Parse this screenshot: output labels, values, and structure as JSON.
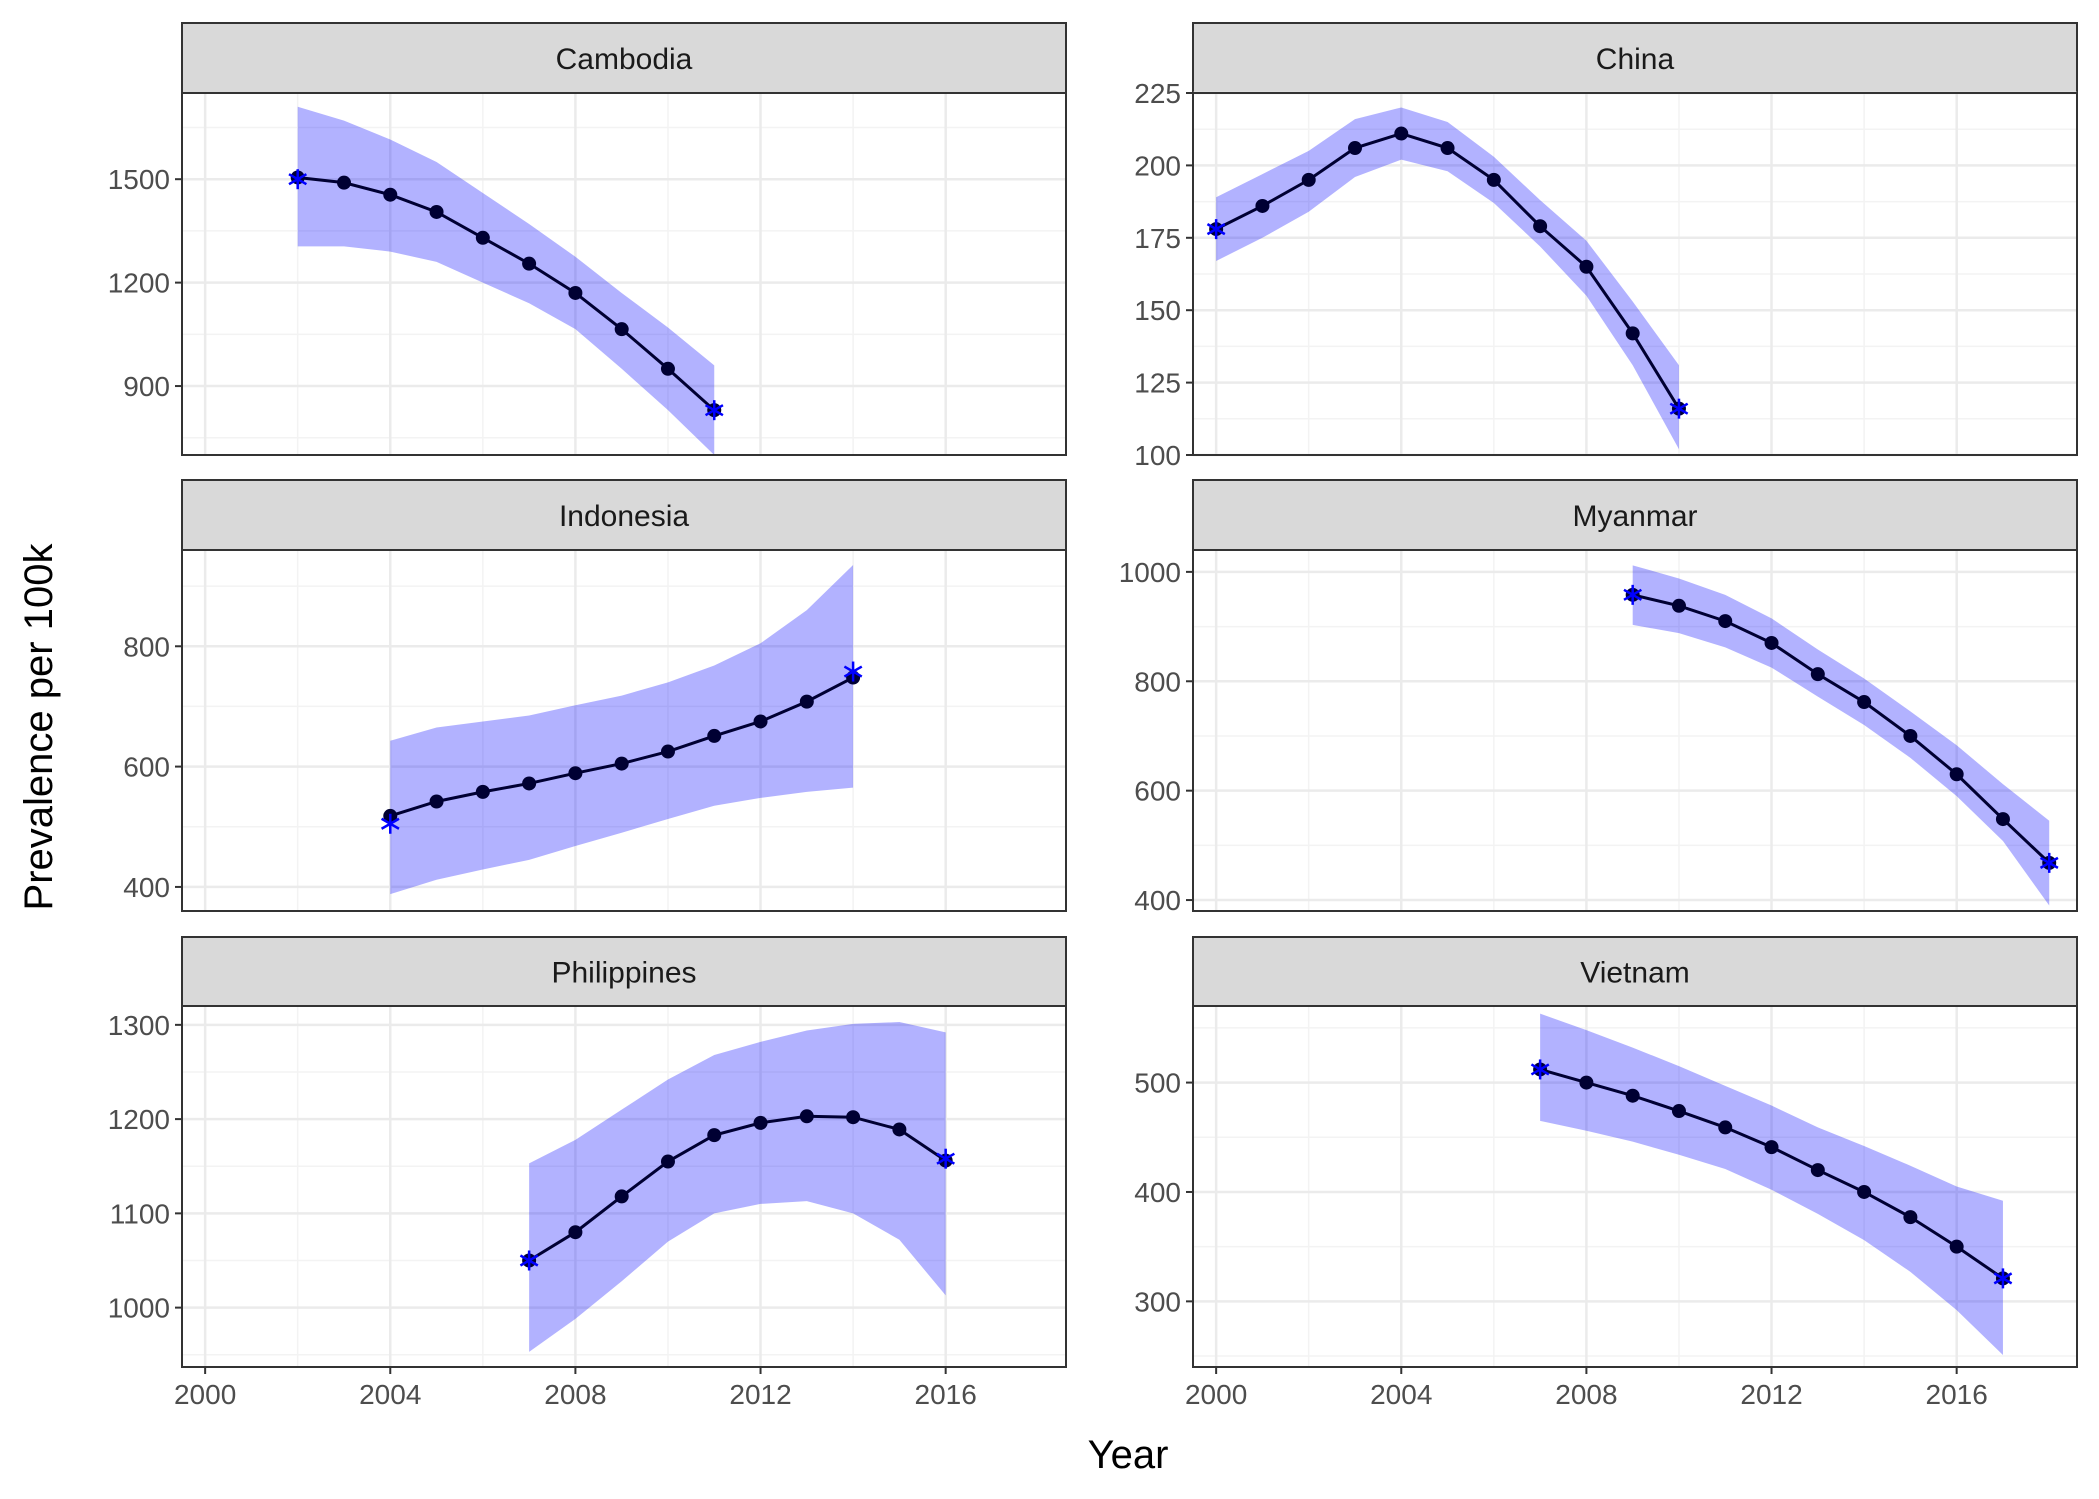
{
  "chart_data": {
    "type": "line",
    "xlabel": "Year",
    "ylabel": "Prevalence per 100k",
    "x_ticks": [
      2000,
      2004,
      2008,
      2012,
      2016
    ],
    "xlim": [
      1999.5,
      2018.6
    ],
    "colors": {
      "line": "#000033",
      "point": "#000033",
      "ribbon": "#0000ff",
      "star": "#0000ff",
      "strip_bg": "#d9d9d9",
      "grid": "#ebebeb"
    },
    "panels": [
      {
        "title": "Cambodia",
        "ylim": [
          700,
          1750
        ],
        "y_ticks": [
          900,
          1200,
          1500
        ],
        "x": [
          2002,
          2003,
          2004,
          2005,
          2006,
          2007,
          2008,
          2009,
          2010,
          2011
        ],
        "y": [
          1505,
          1490,
          1455,
          1405,
          1330,
          1255,
          1170,
          1065,
          950,
          830
        ],
        "lower": [
          1305,
          1305,
          1290,
          1260,
          1200,
          1140,
          1065,
          950,
          830,
          700
        ],
        "upper": [
          1710,
          1670,
          1615,
          1550,
          1460,
          1370,
          1275,
          1170,
          1070,
          960
        ],
        "observed": [
          {
            "x": 2002,
            "y": 1500
          },
          {
            "x": 2011,
            "y": 830
          }
        ]
      },
      {
        "title": "China",
        "ylim": [
          100,
          225
        ],
        "y_ticks": [
          100,
          125,
          150,
          175,
          200,
          225
        ],
        "x": [
          2000,
          2001,
          2002,
          2003,
          2004,
          2005,
          2006,
          2007,
          2008,
          2009,
          2010
        ],
        "y": [
          178,
          186,
          195,
          206,
          211,
          206,
          195,
          179,
          165,
          142,
          116
        ],
        "lower": [
          167,
          175,
          184,
          196,
          202,
          198,
          187,
          172,
          155,
          131,
          102
        ],
        "upper": [
          189,
          197,
          205,
          216,
          220,
          215,
          203,
          188,
          174,
          153,
          131
        ],
        "observed": [
          {
            "x": 2000,
            "y": 178
          },
          {
            "x": 2010,
            "y": 116
          }
        ]
      },
      {
        "title": "Indonesia",
        "ylim": [
          360,
          960
        ],
        "y_ticks": [
          400,
          600,
          800
        ],
        "x": [
          2004,
          2005,
          2006,
          2007,
          2008,
          2009,
          2010,
          2011,
          2012,
          2013,
          2014
        ],
        "y": [
          518,
          542,
          558,
          572,
          589,
          605,
          625,
          651,
          675,
          708,
          748
        ],
        "lower": [
          388,
          412,
          429,
          445,
          468,
          490,
          513,
          535,
          548,
          558,
          565
        ],
        "upper": [
          643,
          665,
          675,
          685,
          702,
          718,
          740,
          768,
          805,
          860,
          935
        ],
        "observed": [
          {
            "x": 2004,
            "y": 505
          },
          {
            "x": 2014,
            "y": 758
          }
        ]
      },
      {
        "title": "Myanmar",
        "ylim": [
          380,
          1040
        ],
        "y_ticks": [
          400,
          600,
          800,
          1000
        ],
        "x": [
          2009,
          2010,
          2011,
          2012,
          2013,
          2014,
          2015,
          2016,
          2017,
          2018
        ],
        "y": [
          958,
          938,
          910,
          870,
          813,
          762,
          700,
          630,
          548,
          468
        ],
        "lower": [
          903,
          888,
          862,
          825,
          772,
          720,
          660,
          590,
          508,
          390
        ],
        "upper": [
          1012,
          988,
          958,
          915,
          858,
          805,
          745,
          683,
          612,
          545
        ],
        "observed": [
          {
            "x": 2009,
            "y": 958
          },
          {
            "x": 2018,
            "y": 468
          }
        ]
      },
      {
        "title": "Philippines",
        "ylim": [
          937,
          1320
        ],
        "y_ticks": [
          1000,
          1100,
          1200,
          1300
        ],
        "x": [
          2007,
          2008,
          2009,
          2010,
          2011,
          2012,
          2013,
          2014,
          2015,
          2016
        ],
        "y": [
          1050,
          1080,
          1118,
          1155,
          1183,
          1196,
          1203,
          1202,
          1189,
          1156
        ],
        "lower": [
          953,
          988,
          1028,
          1070,
          1100,
          1110,
          1113,
          1100,
          1072,
          1013
        ],
        "upper": [
          1153,
          1178,
          1210,
          1242,
          1268,
          1282,
          1294,
          1301,
          1303,
          1292
        ],
        "observed": [
          {
            "x": 2007,
            "y": 1050
          },
          {
            "x": 2016,
            "y": 1158
          }
        ]
      },
      {
        "title": "Vietnam",
        "ylim": [
          240,
          570
        ],
        "y_ticks": [
          300,
          400,
          500
        ],
        "x": [
          2007,
          2008,
          2009,
          2010,
          2011,
          2012,
          2013,
          2014,
          2015,
          2016,
          2017
        ],
        "y": [
          512,
          500,
          488,
          474,
          459,
          441,
          420,
          400,
          377,
          350,
          321
        ],
        "lower": [
          465,
          456,
          446,
          434,
          421,
          402,
          380,
          356,
          327,
          292,
          251
        ],
        "upper": [
          563,
          548,
          532,
          515,
          497,
          479,
          459,
          442,
          424,
          405,
          392
        ],
        "observed": [
          {
            "x": 2007,
            "y": 512
          },
          {
            "x": 2017,
            "y": 321
          }
        ]
      }
    ]
  }
}
